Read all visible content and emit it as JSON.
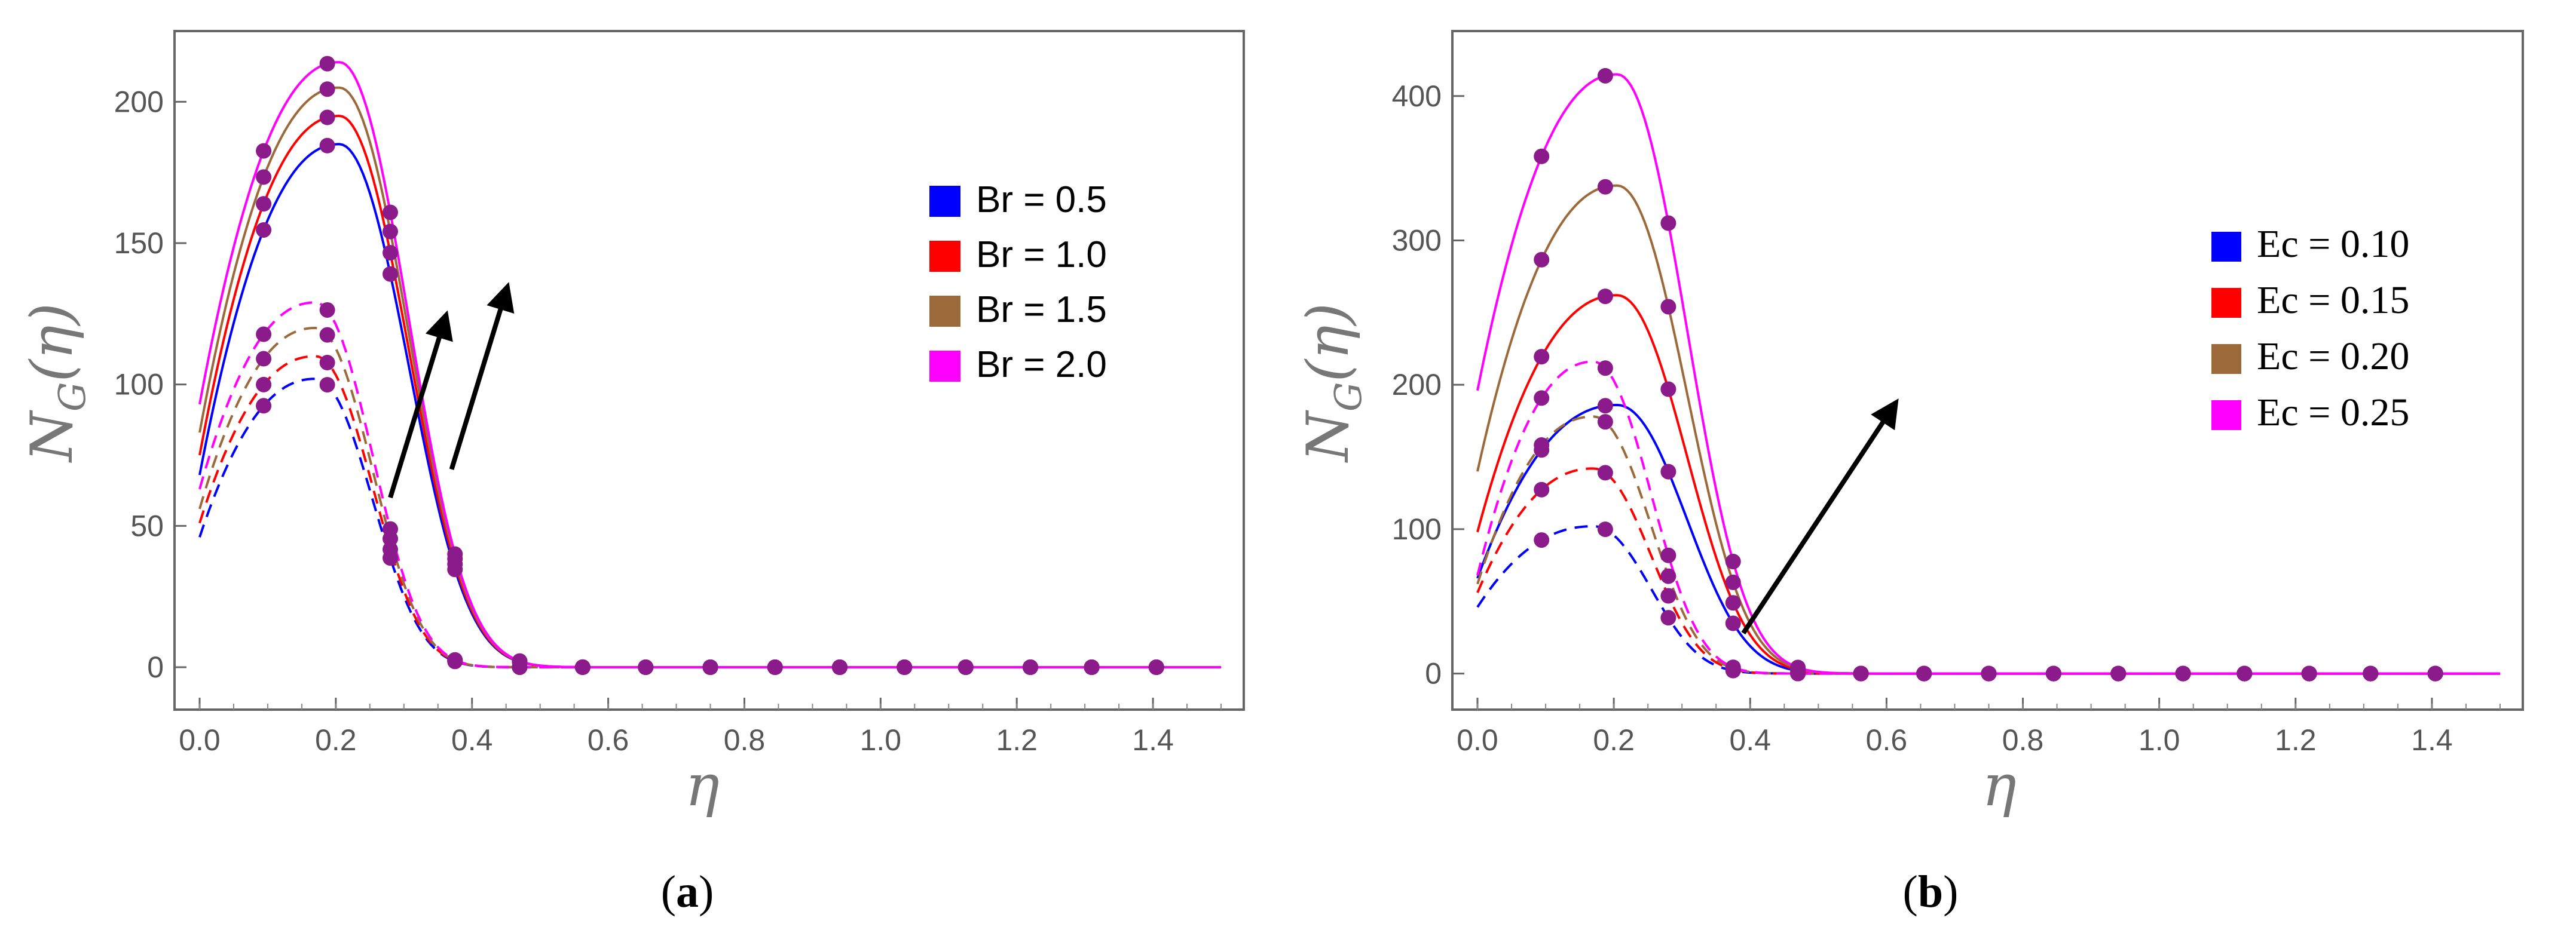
{
  "chart_data": [
    {
      "type": "line",
      "panel": "a",
      "caption": "(a)",
      "caption_letter": "a",
      "xlabel": "η",
      "ylabel_main": "N",
      "ylabel_sub": "G",
      "ylabel_arg": "(η)",
      "xlim": [
        0,
        1.5
      ],
      "ylim": [
        -15,
        225
      ],
      "xticks": [
        0.0,
        0.2,
        0.4,
        0.6,
        0.8,
        1.0,
        1.2,
        1.4
      ],
      "xtick_labels": [
        "0.0",
        "0.2",
        "0.4",
        "0.6",
        "0.8",
        "1.0",
        "1.2",
        "1.4"
      ],
      "yticks": [
        0,
        50,
        100,
        150,
        200
      ],
      "ytick_labels": [
        "0",
        "50",
        "100",
        "150",
        "200"
      ],
      "legend_position": "right",
      "legend_font": "sans",
      "series": [
        {
          "name": "Br = 0.5",
          "color": "#0000ff",
          "solid_peak": 185,
          "solid_start": 68,
          "dashed_peak": 102,
          "dashed_start": 46
        },
        {
          "name": "Br = 1.0",
          "color": "#ff0000",
          "solid_peak": 195,
          "solid_start": 75,
          "dashed_peak": 110,
          "dashed_start": 51
        },
        {
          "name": "Br = 1.5",
          "color": "#9c6a3a",
          "solid_peak": 205,
          "solid_start": 83,
          "dashed_peak": 120,
          "dashed_start": 56
        },
        {
          "name": "Br = 2.0",
          "color": "#ff00ff",
          "solid_peak": 214,
          "solid_start": 93,
          "dashed_peak": 129,
          "dashed_start": 63
        }
      ],
      "arrows": [
        {
          "from": [
            0.37,
            70
          ],
          "to": [
            0.45,
            133
          ]
        },
        {
          "from": [
            0.28,
            60
          ],
          "to": [
            0.36,
            123
          ]
        }
      ]
    },
    {
      "type": "line",
      "panel": "b",
      "caption": "(b)",
      "caption_letter": "b",
      "xlabel": "η",
      "ylabel_main": "N",
      "ylabel_sub": "G",
      "ylabel_arg": "(η)",
      "xlim": [
        0,
        1.5
      ],
      "ylim": [
        -25,
        445
      ],
      "xticks": [
        0.0,
        0.2,
        0.4,
        0.6,
        0.8,
        1.0,
        1.2,
        1.4
      ],
      "xtick_labels": [
        "0.0",
        "0.2",
        "0.4",
        "0.6",
        "0.8",
        "1.0",
        "1.2",
        "1.4"
      ],
      "yticks": [
        0,
        100,
        200,
        300,
        400
      ],
      "ytick_labels": [
        "0",
        "100",
        "200",
        "300",
        "400"
      ],
      "legend_position": "right",
      "legend_font": "serif",
      "series": [
        {
          "name": "Ec = 0.10",
          "color": "#0000ff",
          "solid_peak": 186,
          "solid_start": 66,
          "dashed_peak": 102,
          "dashed_start": 46
        },
        {
          "name": "Ec = 0.15",
          "color": "#ff0000",
          "solid_peak": 262,
          "solid_start": 98,
          "dashed_peak": 142,
          "dashed_start": 56
        },
        {
          "name": "Ec = 0.20",
          "color": "#9c6a3a",
          "solid_peak": 338,
          "solid_start": 140,
          "dashed_peak": 178,
          "dashed_start": 62
        },
        {
          "name": "Ec = 0.25",
          "color": "#ff00ff",
          "solid_peak": 415,
          "solid_start": 196,
          "dashed_peak": 216,
          "dashed_start": 68
        }
      ],
      "arrows": [
        {
          "from": [
            0.39,
            28
          ],
          "to": [
            0.61,
            185
          ]
        }
      ]
    }
  ],
  "marker_color": "#8b1a8b",
  "arrow_color": "#000000"
}
